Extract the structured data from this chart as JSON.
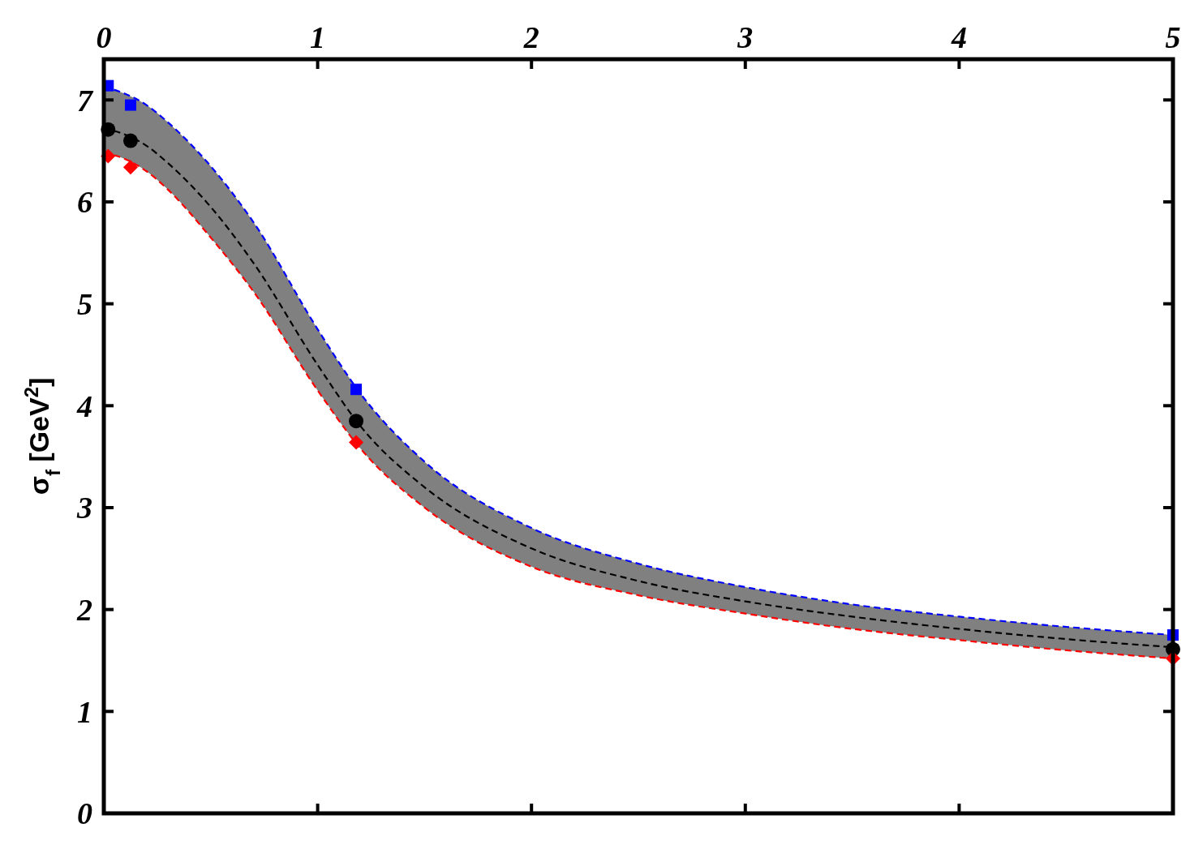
{
  "chart_data": {
    "type": "line",
    "ylabel": "σ$_{f}$ [GeV$^{2}$]",
    "xlim": [
      0,
      5
    ],
    "xticks": [
      0,
      1,
      2,
      3,
      4,
      5
    ],
    "ylim": [
      0,
      7.4
    ],
    "yticks": [
      0,
      1,
      2,
      3,
      4,
      5,
      6,
      7
    ],
    "grid": false,
    "series": [
      {
        "color": "#000000",
        "line_style": "dashed",
        "x": [
          0,
          0.1,
          0.2,
          0.3,
          0.5,
          0.7,
          1,
          1.2,
          1.5,
          2,
          2.5,
          3,
          3.5,
          4,
          4.5,
          5
        ],
        "values": [
          6.72,
          6.66,
          6.55,
          6.38,
          5.95,
          5.4,
          4.4,
          3.8,
          3.2,
          2.6,
          2.28,
          2.08,
          1.93,
          1.81,
          1.71,
          1.63
        ],
        "lower": [
          6.48,
          6.42,
          6.3,
          6.12,
          5.65,
          5.12,
          4.15,
          3.58,
          3.0,
          2.42,
          2.14,
          1.96,
          1.81,
          1.7,
          1.6,
          1.52
        ],
        "upper": [
          7.13,
          7.06,
          6.95,
          6.78,
          6.35,
          5.8,
          4.75,
          4.12,
          3.45,
          2.8,
          2.45,
          2.22,
          2.05,
          1.93,
          1.83,
          1.75
        ]
      },
      {
        "color": "#0000ff",
        "line_style": "dashed",
        "x": [
          0,
          0.1,
          0.2,
          0.3,
          0.5,
          0.7,
          1,
          1.2,
          1.5,
          2,
          2.5,
          3,
          3.5,
          4,
          4.5,
          5
        ],
        "values": [
          7.13,
          7.06,
          6.95,
          6.78,
          6.35,
          5.8,
          4.75,
          4.12,
          3.45,
          2.8,
          2.45,
          2.22,
          2.05,
          1.93,
          1.83,
          1.75
        ]
      },
      {
        "color": "#ff0000",
        "line_style": "dashed",
        "x": [
          0,
          0.1,
          0.2,
          0.3,
          0.5,
          0.7,
          1,
          1.2,
          1.5,
          2,
          2.5,
          3,
          3.5,
          4,
          4.5,
          5
        ],
        "values": [
          6.48,
          6.42,
          6.3,
          6.12,
          5.65,
          5.12,
          4.15,
          3.58,
          3.0,
          2.42,
          2.14,
          1.96,
          1.81,
          1.7,
          1.6,
          1.52
        ]
      },
      {
        "type": "scatter",
        "color": "#0000ff",
        "marker": "square",
        "x": [
          0.02,
          0.125,
          1.18,
          5
        ],
        "values": [
          7.14,
          6.95,
          4.16,
          1.75
        ]
      },
      {
        "type": "scatter",
        "color": "#000000",
        "marker": "circle",
        "x": [
          0.02,
          0.125,
          1.18,
          5
        ],
        "values": [
          6.71,
          6.6,
          3.85,
          1.61
        ]
      },
      {
        "type": "scatter",
        "color": "#ff0000",
        "marker": "diamond",
        "x": [
          0.02,
          0.125,
          1.18,
          5
        ],
        "values": [
          6.45,
          6.34,
          3.64,
          1.52
        ]
      }
    ]
  }
}
